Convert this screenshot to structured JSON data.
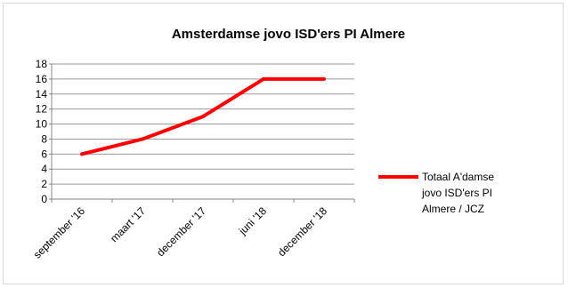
{
  "chart_data": {
    "type": "line",
    "title": "Amsterdamse jovo ISD'ers PI Almere",
    "categories": [
      "september '16",
      "maart '17",
      "december '17",
      "juni '18",
      "december '18"
    ],
    "series": [
      {
        "name": "Totaal A'damse jovo ISD'ers PI Almere / JCZ",
        "values": [
          6,
          8,
          11,
          16,
          16
        ],
        "color": "#ff0000"
      }
    ],
    "ylim": [
      0,
      18
    ],
    "yticks": [
      "0",
      "2",
      "4",
      "6",
      "8",
      "10",
      "12",
      "14",
      "16",
      "18"
    ],
    "grid": true,
    "legend_position": "right",
    "legend_lines": [
      "Totaal A'damse",
      "jovo ISD'ers PI",
      "Almere / JCZ"
    ]
  }
}
